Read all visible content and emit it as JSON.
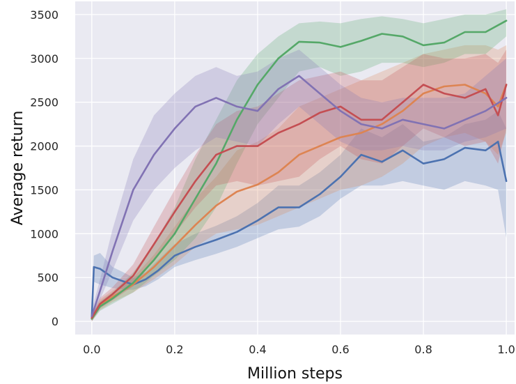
{
  "chart_data": {
    "type": "line",
    "title": "",
    "xlabel": "Million steps",
    "ylabel": "Average return",
    "xlim": [
      -0.04,
      1.02
    ],
    "ylim": [
      -150,
      3650
    ],
    "xticks": [
      0.0,
      0.2,
      0.4,
      0.6,
      0.8,
      1.0
    ],
    "xtick_labels": [
      "0.0",
      "0.2",
      "0.4",
      "0.6",
      "0.8",
      "1.0"
    ],
    "yticks": [
      0,
      500,
      1000,
      1500,
      2000,
      2500,
      3000,
      3500
    ],
    "ytick_labels": [
      "0",
      "500",
      "1000",
      "1500",
      "2000",
      "2500",
      "3000",
      "3500"
    ],
    "grid": true,
    "background": "#eaeaf2",
    "series": [
      {
        "name": "blue",
        "color": "#4c72b0",
        "x": [
          0.0,
          0.005,
          0.02,
          0.05,
          0.08,
          0.1,
          0.13,
          0.16,
          0.2,
          0.25,
          0.3,
          0.35,
          0.4,
          0.45,
          0.5,
          0.55,
          0.6,
          0.65,
          0.7,
          0.75,
          0.8,
          0.85,
          0.9,
          0.95,
          0.98,
          1.0
        ],
        "y": [
          50,
          620,
          600,
          500,
          450,
          420,
          480,
          580,
          750,
          850,
          930,
          1020,
          1150,
          1300,
          1300,
          1450,
          1650,
          1900,
          1820,
          1950,
          1800,
          1850,
          1980,
          1950,
          2050,
          1600
        ],
        "lower": [
          0,
          450,
          420,
          380,
          360,
          360,
          400,
          480,
          620,
          700,
          770,
          850,
          950,
          1050,
          1080,
          1200,
          1400,
          1550,
          1550,
          1600,
          1550,
          1500,
          1600,
          1550,
          1500,
          950
        ],
        "upper": [
          100,
          750,
          780,
          620,
          550,
          500,
          560,
          700,
          880,
          1000,
          1090,
          1200,
          1350,
          1550,
          1550,
          1700,
          1900,
          2200,
          2100,
          2250,
          2050,
          2100,
          2250,
          2300,
          2400,
          2200
        ]
      },
      {
        "name": "orange",
        "color": "#dd8452",
        "x": [
          0.0,
          0.02,
          0.05,
          0.1,
          0.15,
          0.2,
          0.25,
          0.3,
          0.35,
          0.4,
          0.45,
          0.5,
          0.55,
          0.6,
          0.65,
          0.7,
          0.75,
          0.8,
          0.85,
          0.9,
          0.95,
          0.98,
          1.0
        ],
        "y": [
          30,
          180,
          280,
          420,
          620,
          860,
          1100,
          1320,
          1480,
          1560,
          1700,
          1900,
          2000,
          2100,
          2150,
          2250,
          2400,
          2600,
          2680,
          2700,
          2600,
          2450,
          2700
        ],
        "lower": [
          0,
          130,
          220,
          330,
          480,
          650,
          850,
          1000,
          1050,
          1100,
          1200,
          1300,
          1400,
          1500,
          1550,
          1650,
          1800,
          2000,
          2100,
          2150,
          2050,
          1900,
          2150
        ],
        "upper": [
          80,
          250,
          350,
          500,
          760,
          1080,
          1400,
          1650,
          1950,
          2050,
          2200,
          2450,
          2550,
          2650,
          2750,
          2850,
          2950,
          3050,
          3100,
          3150,
          3150,
          3100,
          3150
        ]
      },
      {
        "name": "green",
        "color": "#55a868",
        "x": [
          0.0,
          0.02,
          0.05,
          0.1,
          0.15,
          0.2,
          0.25,
          0.3,
          0.35,
          0.4,
          0.45,
          0.5,
          0.55,
          0.6,
          0.65,
          0.7,
          0.75,
          0.8,
          0.85,
          0.9,
          0.95,
          1.0
        ],
        "y": [
          30,
          170,
          260,
          440,
          700,
          1000,
          1400,
          1800,
          2300,
          2700,
          3000,
          3190,
          3180,
          3130,
          3200,
          3280,
          3250,
          3150,
          3180,
          3300,
          3300,
          3430
        ],
        "lower": [
          0,
          120,
          200,
          330,
          520,
          700,
          950,
          1300,
          1800,
          2250,
          2550,
          2850,
          2900,
          2800,
          2850,
          2950,
          2950,
          2900,
          2950,
          3050,
          3050,
          3250
        ],
        "upper": [
          80,
          230,
          330,
          560,
          880,
          1300,
          1850,
          2300,
          2750,
          3050,
          3250,
          3400,
          3420,
          3400,
          3450,
          3480,
          3450,
          3400,
          3450,
          3500,
          3500,
          3560
        ]
      },
      {
        "name": "red",
        "color": "#c44e52",
        "x": [
          0.0,
          0.02,
          0.05,
          0.1,
          0.15,
          0.2,
          0.25,
          0.3,
          0.35,
          0.4,
          0.45,
          0.5,
          0.55,
          0.6,
          0.65,
          0.7,
          0.75,
          0.8,
          0.85,
          0.9,
          0.95,
          0.98,
          1.0
        ],
        "y": [
          40,
          200,
          310,
          520,
          880,
          1250,
          1600,
          1900,
          2000,
          2000,
          2150,
          2250,
          2380,
          2450,
          2300,
          2300,
          2500,
          2700,
          2600,
          2550,
          2650,
          2350,
          2700
        ],
        "lower": [
          0,
          150,
          240,
          400,
          700,
          1000,
          1300,
          1550,
          1600,
          1550,
          1600,
          1650,
          1850,
          2000,
          1850,
          1800,
          2000,
          2200,
          2100,
          2000,
          2050,
          1800,
          2200
        ],
        "upper": [
          90,
          270,
          390,
          650,
          1080,
          1500,
          1900,
          2250,
          2400,
          2450,
          2600,
          2750,
          2800,
          2850,
          2750,
          2750,
          2900,
          3050,
          3000,
          3000,
          3050,
          2950,
          3100
        ]
      },
      {
        "name": "purple",
        "color": "#8172b3",
        "x": [
          0.0,
          0.02,
          0.05,
          0.1,
          0.15,
          0.2,
          0.25,
          0.3,
          0.35,
          0.4,
          0.45,
          0.5,
          0.55,
          0.6,
          0.65,
          0.7,
          0.75,
          0.8,
          0.85,
          0.9,
          0.95,
          1.0
        ],
        "y": [
          60,
          350,
          800,
          1500,
          1900,
          2200,
          2450,
          2550,
          2450,
          2400,
          2650,
          2800,
          2600,
          2400,
          2250,
          2200,
          2300,
          2250,
          2200,
          2300,
          2400,
          2550
        ],
        "lower": [
          0,
          250,
          580,
          1150,
          1500,
          1750,
          1950,
          2100,
          2050,
          2000,
          2250,
          2450,
          2250,
          2050,
          1950,
          1950,
          2000,
          1950,
          1950,
          2050,
          2100,
          2200
        ],
        "upper": [
          130,
          480,
          1050,
          1850,
          2350,
          2600,
          2800,
          2900,
          2800,
          2850,
          3000,
          3100,
          2900,
          2700,
          2550,
          2500,
          2550,
          2550,
          2550,
          2600,
          2800,
          3000
        ]
      }
    ]
  }
}
